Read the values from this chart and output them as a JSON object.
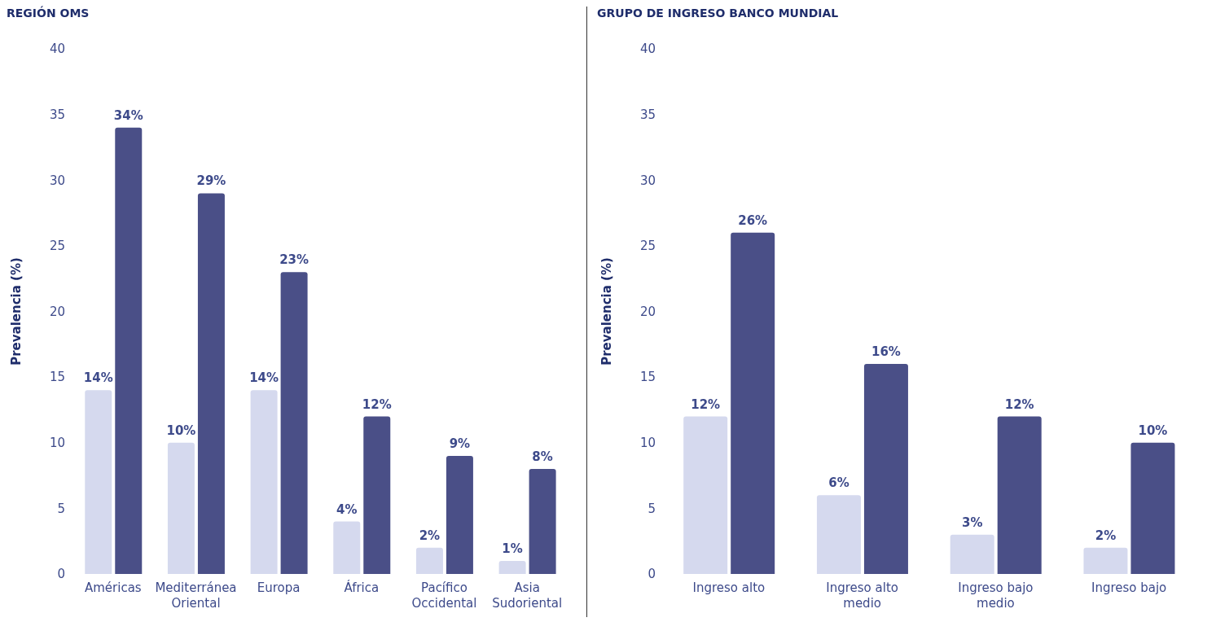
{
  "chart_data": [
    {
      "type": "bar",
      "title": "REGIÓN OMS",
      "ylabel": "Prevalencia (%)",
      "categories": [
        "Américas",
        "Mediterránea Oriental",
        "Europa",
        "África",
        "Pacífico Occidental",
        "Asia Sudoriental"
      ],
      "series": [
        {
          "color": "#d5d9ee",
          "values": [
            14,
            10,
            14,
            4,
            2,
            1
          ],
          "value_labels": [
            "14%",
            "10%",
            "14%",
            "4%",
            "2%",
            "1%"
          ]
        },
        {
          "color": "#4a4f87",
          "values": [
            34,
            29,
            23,
            12,
            9,
            8
          ],
          "value_labels": [
            "34%",
            "29%",
            "23%",
            "12%",
            "9%",
            "8%"
          ]
        }
      ],
      "ylim": [
        0,
        40
      ],
      "yticks": [
        0,
        5,
        10,
        15,
        20,
        25,
        30,
        35,
        40
      ],
      "grid": false,
      "legend": false
    },
    {
      "type": "bar",
      "title": "GRUPO DE INGRESO BANCO MUNDIAL",
      "ylabel": "Prevalencia (%)",
      "categories": [
        "Ingreso alto",
        "Ingreso alto medio",
        "Ingreso bajo medio",
        "Ingreso bajo"
      ],
      "series": [
        {
          "color": "#d5d9ee",
          "values": [
            12,
            6,
            3,
            2
          ],
          "value_labels": [
            "12%",
            "6%",
            "3%",
            "2%"
          ]
        },
        {
          "color": "#4a4f87",
          "values": [
            26,
            16,
            12,
            10
          ],
          "value_labels": [
            "26%",
            "16%",
            "12%",
            "10%"
          ]
        }
      ],
      "ylim": [
        0,
        40
      ],
      "yticks": [
        0,
        5,
        10,
        15,
        20,
        25,
        30,
        35,
        40
      ],
      "grid": false,
      "legend": false
    }
  ]
}
